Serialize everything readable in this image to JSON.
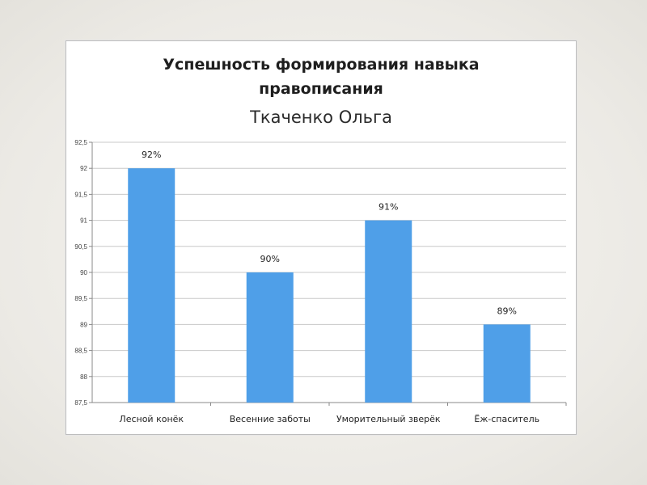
{
  "chart_data": {
    "type": "bar",
    "title": "Успешность формирования навыка правописания",
    "title_lines": [
      "Успешность формирования навыка",
      "правописания"
    ],
    "subtitle": "Ткаченко Ольга",
    "categories": [
      "Лесной конёк",
      "Весенние заботы",
      "Уморительный зверёк",
      "Ёж-спаситель"
    ],
    "values": [
      92,
      90,
      91,
      89
    ],
    "data_labels": [
      "92%",
      "90%",
      "91%",
      "89%"
    ],
    "ylim": [
      87.5,
      92.5
    ],
    "yticks": [
      "87,5",
      "88",
      "88,5",
      "89",
      "89,5",
      "90",
      "90,5",
      "91",
      "91,5",
      "92",
      "92,5"
    ],
    "xlabel": "",
    "ylabel": "",
    "grid": true,
    "legend": "none",
    "bar_color": "#4f9fe8",
    "grid_color": "#c8c8c8"
  }
}
